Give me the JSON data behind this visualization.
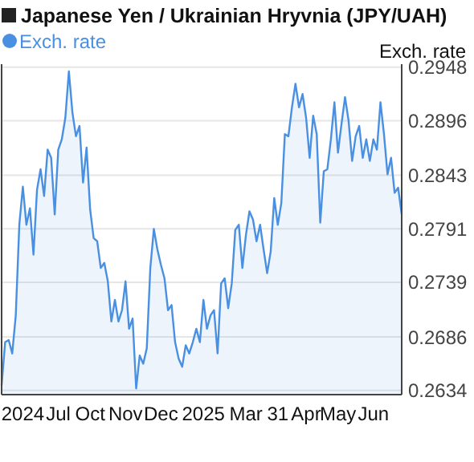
{
  "chart_data": {
    "type": "area",
    "title": "Japanese Yen / Ukrainian Hryvnia (JPY/UAH)",
    "ylabel": "Exch. rate",
    "legend": "top left",
    "grid": "y",
    "marker": "none",
    "ylim": [
      0.263,
      0.2951
    ],
    "categories": [
      null,
      null,
      null,
      null,
      null,
      null,
      "2024",
      null,
      null,
      null,
      null,
      null,
      null,
      null,
      null,
      null,
      "Jul",
      null,
      null,
      null,
      null,
      null,
      null,
      null,
      null,
      "Oct",
      null,
      null,
      null,
      null,
      null,
      null,
      null,
      null,
      null,
      "Nov",
      null,
      null,
      null,
      null,
      null,
      null,
      null,
      null,
      null,
      "Dec",
      null,
      null,
      null,
      null,
      null,
      null,
      null,
      null,
      null,
      null,
      null,
      "2025",
      null,
      null,
      null,
      null,
      null,
      null,
      null,
      null,
      null,
      null,
      null,
      "Mar",
      null,
      null,
      null,
      null,
      null,
      null,
      null,
      null,
      "31",
      null,
      null,
      null,
      null,
      null,
      null,
      null,
      "Apr",
      null,
      null,
      null,
      null,
      null,
      null,
      null,
      null,
      "May",
      null,
      null,
      null,
      null,
      null,
      null,
      null,
      null,
      null,
      "Jun",
      null,
      null,
      null,
      null,
      null,
      null,
      null,
      null
    ],
    "yticks": [
      0.2634,
      0.2686,
      0.2739,
      0.2791,
      0.2843,
      0.2896,
      0.2948
    ],
    "series": [
      {
        "name": "Exch. rate",
        "color": "#4a90e2",
        "values": [
          0.2639,
          0.2681,
          0.2683,
          0.267,
          0.2707,
          0.2795,
          0.2832,
          0.2795,
          0.2811,
          0.2766,
          0.2829,
          0.2849,
          0.2823,
          0.2868,
          0.286,
          0.2805,
          0.2868,
          0.2878,
          0.2899,
          0.2944,
          0.2904,
          0.2881,
          0.2891,
          0.2836,
          0.287,
          0.281,
          0.2782,
          0.2779,
          0.2753,
          0.2758,
          0.274,
          0.2701,
          0.2722,
          0.2701,
          0.2712,
          0.274,
          0.2694,
          0.2704,
          0.2636,
          0.2668,
          0.266,
          0.2675,
          0.2753,
          0.2791,
          0.2771,
          0.2756,
          0.2743,
          0.2712,
          0.2717,
          0.2681,
          0.2665,
          0.2657,
          0.2678,
          0.267,
          0.2681,
          0.2694,
          0.2681,
          0.2722,
          0.2694,
          0.2707,
          0.2712,
          0.267,
          0.2738,
          0.2743,
          0.2714,
          0.2738,
          0.279,
          0.2795,
          0.2753,
          0.2785,
          0.2808,
          0.28,
          0.2779,
          0.2795,
          0.2771,
          0.2748,
          0.2769,
          0.2821,
          0.2795,
          0.2816,
          0.2883,
          0.2881,
          0.2909,
          0.2932,
          0.2909,
          0.2922,
          0.2899,
          0.286,
          0.2901,
          0.2883,
          0.2797,
          0.2847,
          0.2849,
          0.2878,
          0.2914,
          0.2865,
          0.2893,
          0.2919,
          0.2896,
          0.2857,
          0.2881,
          0.2891,
          0.286,
          0.2878,
          0.2857,
          0.2878,
          0.2868,
          0.2914,
          0.2883,
          0.2844,
          0.286,
          0.2826,
          0.2831,
          0.2805
        ]
      }
    ]
  }
}
